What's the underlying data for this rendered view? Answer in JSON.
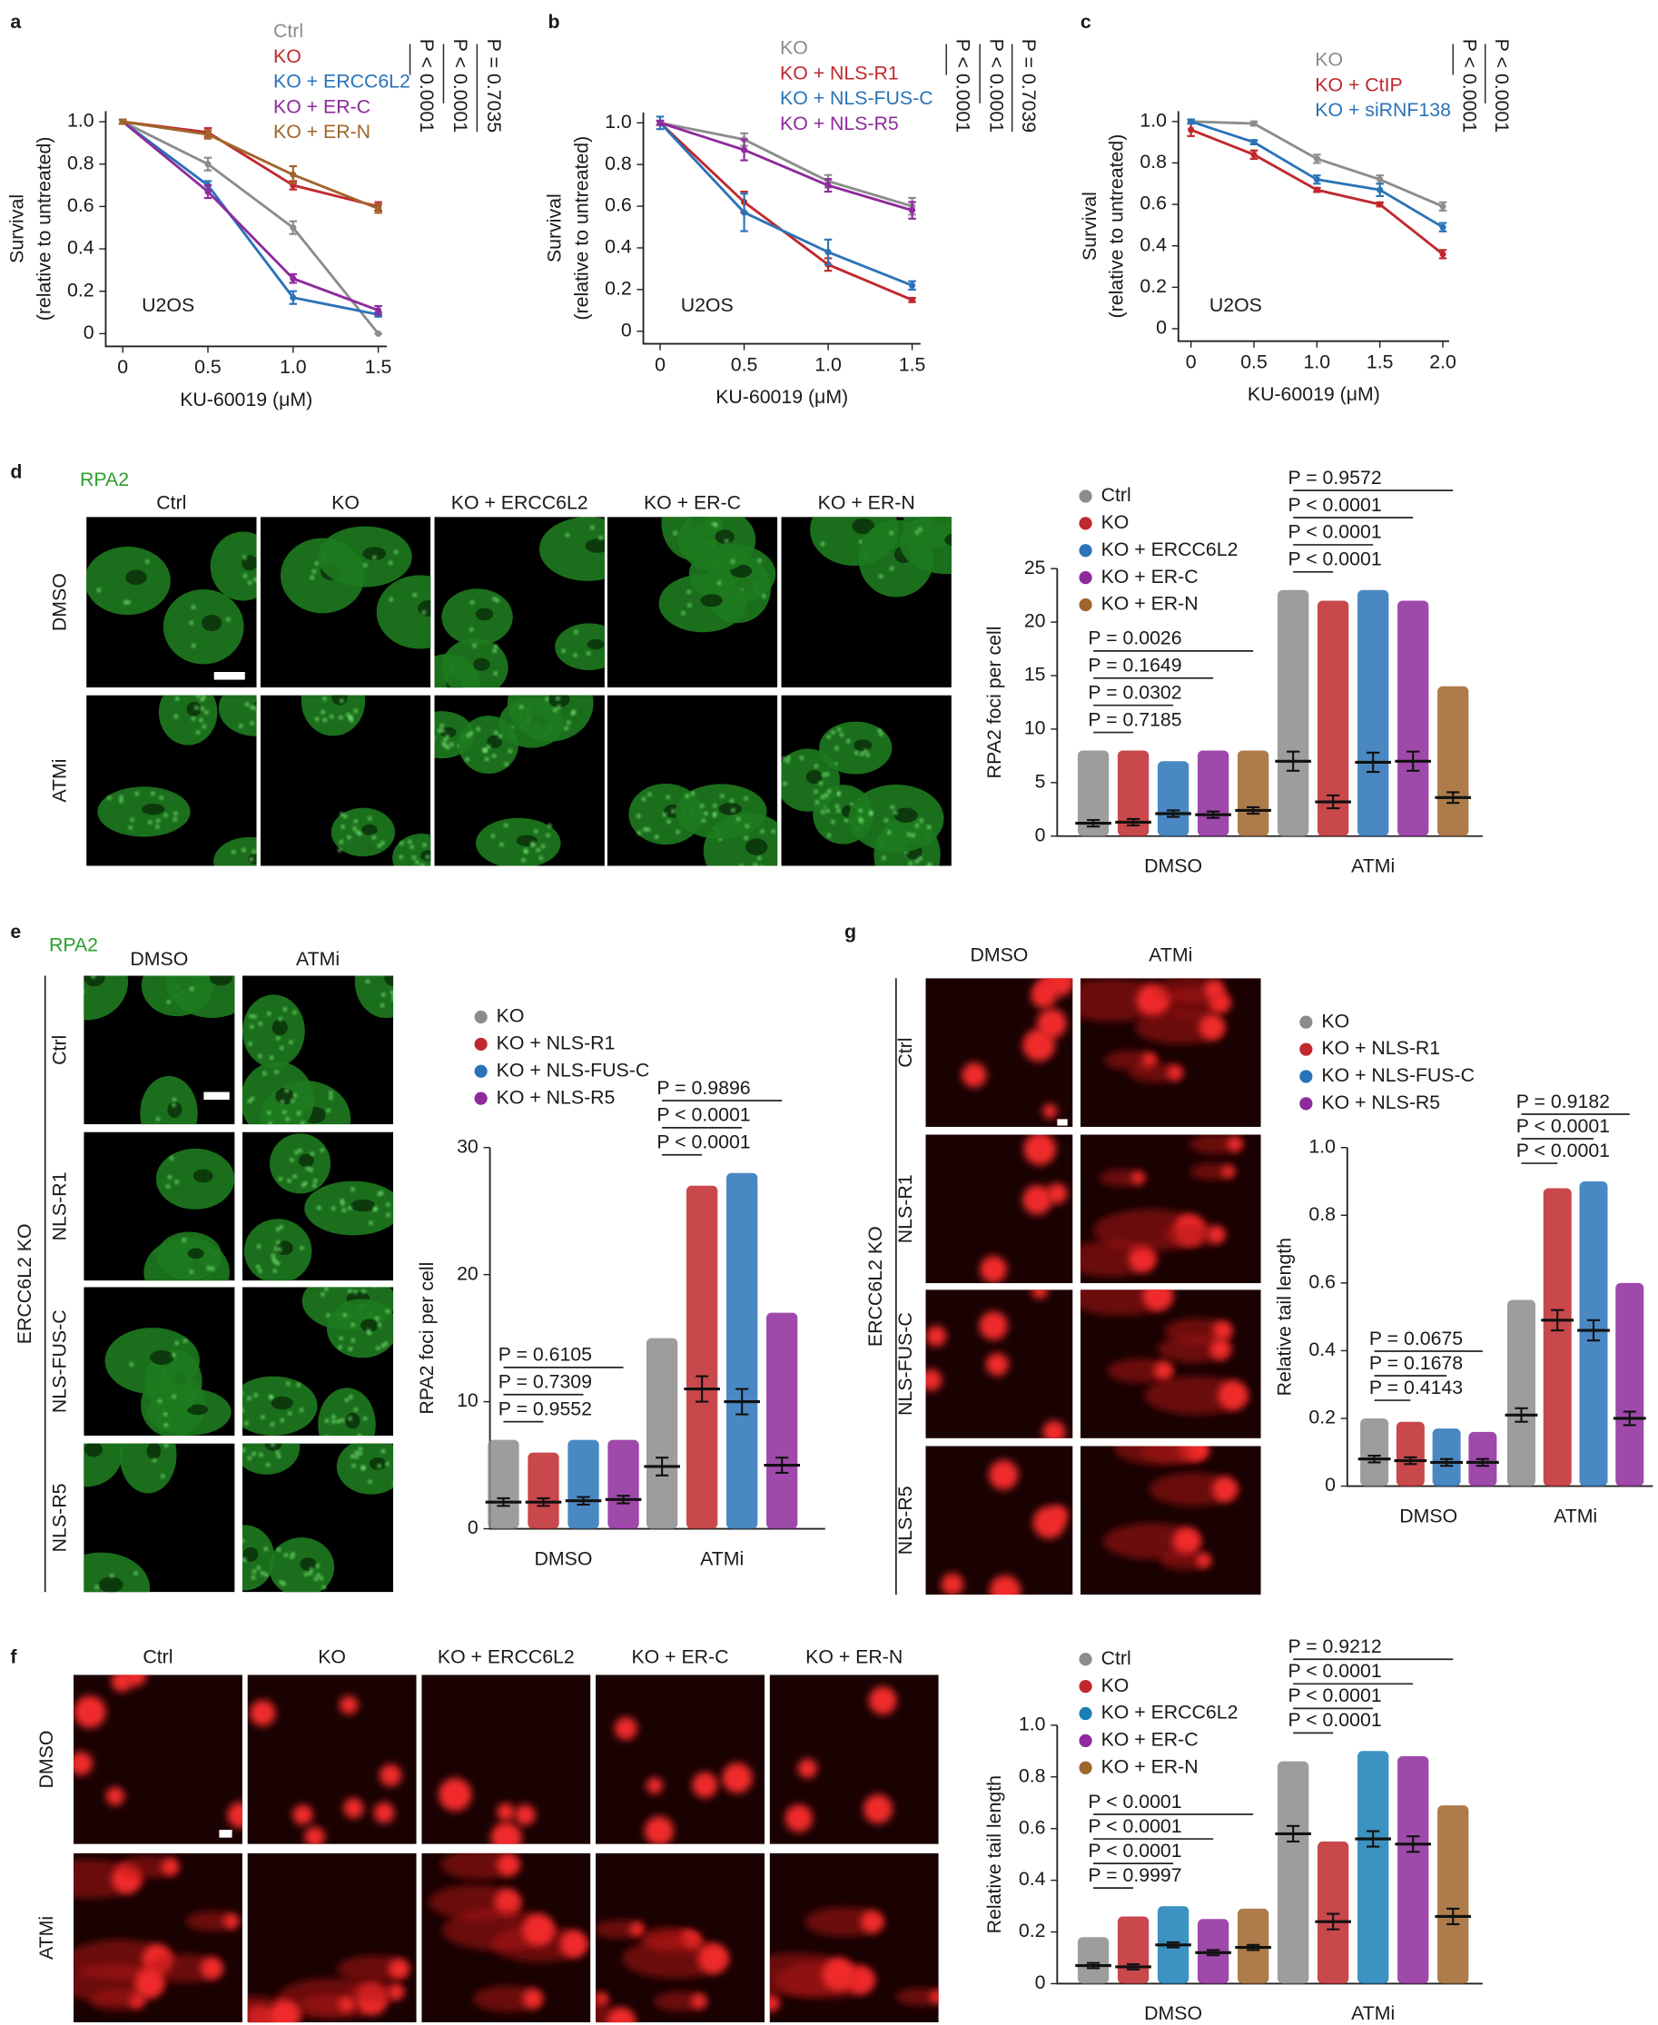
{
  "panel_letters": [
    "a",
    "b",
    "c",
    "d",
    "e",
    "f",
    "g"
  ],
  "image_panels": [
    {
      "stain": "RPA2",
      "columns": [
        "Ctrl",
        "KO",
        "KO + ERCC6L2",
        "KO + ER-C",
        "KO + ER-N"
      ],
      "rows": [
        "DMSO",
        "ATMi"
      ]
    },
    {
      "stain": "RPA2",
      "columns": [
        "DMSO",
        "ATMi"
      ],
      "rows": [
        "Ctrl",
        "NLS-R1",
        "NLS-FUS-C",
        "NLS-R5"
      ],
      "side": "ERCC6L2 KO"
    },
    {
      "columns": [
        "Ctrl",
        "KO",
        "KO + ERCC6L2",
        "KO + ER-C",
        "KO + ER-N"
      ],
      "rows": [
        "DMSO",
        "ATMi"
      ]
    },
    {
      "columns": [
        "DMSO",
        "ATMi"
      ],
      "rows": [
        "Ctrl",
        "NLS-R1",
        "NLS-FUS-C",
        "NLS-R5"
      ],
      "side": "ERCC6L2 KO"
    }
  ],
  "chart_data": [
    {
      "type": "line",
      "ylabel": [
        "Survival",
        "(relative to untreated)"
      ],
      "xlabel": "KU-60019 (μM)",
      "cell_line": "U2OS",
      "x": [
        0,
        0.5,
        1,
        1.5
      ],
      "xlim": [
        -0.1,
        1.55
      ],
      "ylim": [
        -0.06,
        1.05
      ],
      "xticks": [
        0,
        0.5,
        {
          "value": 1,
          "label": "1.0"
        },
        1.5
      ],
      "yticks": [
        0,
        0.2,
        0.4,
        0.6,
        0.8,
        {
          "value": 1,
          "label": "1.0"
        }
      ],
      "annotations": [
        "P < 0.0001",
        "P < 0.0001",
        "P = 0.7035"
      ],
      "series": [
        {
          "name": "Ctrl",
          "color": "#8c8c8c",
          "values": [
            1.0,
            0.8,
            0.5,
            0.0
          ],
          "errors": [
            0.01,
            0.03,
            0.03,
            0.0
          ]
        },
        {
          "name": "KO",
          "color": "#c0282d",
          "values": [
            1.0,
            0.95,
            0.7,
            0.6
          ],
          "errors": [
            0.01,
            0.02,
            0.02,
            0.02
          ]
        },
        {
          "name": "KO + ERCC6L2",
          "color": "#2a73b8",
          "values": [
            1.0,
            0.7,
            0.17,
            0.09
          ],
          "errors": [
            0.01,
            0.02,
            0.03,
            0.01
          ]
        },
        {
          "name": "KO + ER-C",
          "color": "#8e2a9c",
          "values": [
            1.0,
            0.67,
            0.26,
            0.11
          ],
          "errors": [
            0.01,
            0.03,
            0.02,
            0.02
          ]
        },
        {
          "name": "KO + ER-N",
          "color": "#a0652a",
          "values": [
            1.0,
            0.94,
            0.75,
            0.59
          ],
          "errors": [
            0.01,
            0.02,
            0.04,
            0.02
          ]
        }
      ]
    },
    {
      "type": "line",
      "ylabel": [
        "Survival",
        "(relative to untreated)"
      ],
      "xlabel": "KU-60019 (μM)",
      "cell_line": "U2OS",
      "x": [
        0,
        0.5,
        1,
        1.5
      ],
      "xlim": [
        -0.1,
        1.55
      ],
      "ylim": [
        -0.06,
        1.05
      ],
      "xticks": [
        0,
        0.5,
        {
          "value": 1,
          "label": "1.0"
        },
        1.5
      ],
      "yticks": [
        0,
        0.2,
        0.4,
        0.6,
        0.8,
        {
          "value": 1,
          "label": "1.0"
        }
      ],
      "annotations": [
        "P < 0.0001",
        "P < 0.0001",
        "P = 0.7039"
      ],
      "series": [
        {
          "name": "KO",
          "color": "#8c8c8c",
          "values": [
            1.0,
            0.92,
            0.72,
            0.6
          ],
          "errors": [
            0.01,
            0.03,
            0.03,
            0.04
          ]
        },
        {
          "name": "KO + NLS-R1",
          "color": "#c0282d",
          "values": [
            1.0,
            0.62,
            0.32,
            0.15
          ],
          "errors": [
            0.01,
            0.05,
            0.03,
            0.01
          ]
        },
        {
          "name": "KO + NLS-FUS-C",
          "color": "#2a73b8",
          "values": [
            1.0,
            0.57,
            0.38,
            0.22
          ],
          "errors": [
            0.03,
            0.09,
            0.06,
            0.02
          ]
        },
        {
          "name": "KO + NLS-R5",
          "color": "#8e2a9c",
          "values": [
            1.0,
            0.87,
            0.7,
            0.58
          ],
          "errors": [
            0.01,
            0.05,
            0.03,
            0.04
          ]
        }
      ]
    },
    {
      "type": "line",
      "ylabel": [
        "Survival",
        "(relative to untreated)"
      ],
      "xlabel": "KU-60019 (μM)",
      "cell_line": "U2OS",
      "x": [
        0,
        0.5,
        1,
        1.5,
        2
      ],
      "xlim": [
        -0.1,
        2.05
      ],
      "ylim": [
        -0.06,
        1.05
      ],
      "xticks": [
        0,
        0.5,
        {
          "value": 1,
          "label": "1.0"
        },
        1.5,
        {
          "value": 2,
          "label": "2.0"
        }
      ],
      "yticks": [
        0,
        0.2,
        0.4,
        0.6,
        0.8,
        {
          "value": 1,
          "label": "1.0"
        }
      ],
      "annotations": [
        "P < 0.0001",
        "P < 0.0001"
      ],
      "series": [
        {
          "name": "KO",
          "color": "#8c8c8c",
          "values": [
            1.0,
            0.99,
            0.82,
            0.72,
            0.59
          ],
          "errors": [
            0.01,
            0.01,
            0.02,
            0.02,
            0.02
          ]
        },
        {
          "name": "KO + CtIP",
          "color": "#c0282d",
          "values": [
            0.96,
            0.84,
            0.67,
            0.6,
            0.36
          ],
          "errors": [
            0.03,
            0.02,
            0.01,
            0.01,
            0.02
          ]
        },
        {
          "name": "KO + siRNF138",
          "color": "#2a73b8",
          "values": [
            1.0,
            0.9,
            0.72,
            0.67,
            0.49
          ],
          "errors": [
            0.01,
            0.01,
            0.02,
            0.03,
            0.02
          ]
        }
      ]
    },
    {
      "type": "dotplot",
      "ylabel": "RPA2 foci per cell",
      "categories": [
        "DMSO",
        "ATMi"
      ],
      "ylim": [
        0,
        25
      ],
      "yticks": [
        0,
        5,
        10,
        15,
        20,
        25
      ],
      "comparisons": [
        [
          "P = 0.7185",
          "P = 0.0302",
          "P = 0.1649",
          "P = 0.0026"
        ],
        [
          "P < 0.0001",
          "P < 0.0001",
          "P < 0.0001",
          "P = 0.9572"
        ]
      ],
      "series": [
        {
          "name": "Ctrl",
          "color": "#8c8c8c",
          "values": [
            1.2,
            7.0
          ],
          "sem": [
            0.3,
            0.9
          ],
          "max": [
            8,
            23
          ]
        },
        {
          "name": "KO",
          "color": "#c0282d",
          "values": [
            1.3,
            3.2
          ],
          "sem": [
            0.3,
            0.6
          ],
          "max": [
            8,
            22
          ]
        },
        {
          "name": "KO + ERCC6L2",
          "color": "#2a73b8",
          "values": [
            2.1,
            6.9
          ],
          "sem": [
            0.3,
            0.9
          ],
          "max": [
            7,
            23
          ]
        },
        {
          "name": "KO + ER-C",
          "color": "#8e2a9c",
          "values": [
            2.0,
            7.0
          ],
          "sem": [
            0.3,
            0.9
          ],
          "max": [
            8,
            22
          ]
        },
        {
          "name": "KO + ER-N",
          "color": "#a0652a",
          "values": [
            2.4,
            3.6
          ],
          "sem": [
            0.3,
            0.5
          ],
          "max": [
            8,
            14
          ]
        }
      ]
    },
    {
      "type": "dotplot",
      "ylabel": "RPA2 foci per cell",
      "categories": [
        "DMSO",
        "ATMi"
      ],
      "ylim": [
        0,
        30
      ],
      "yticks": [
        0,
        10,
        20,
        30
      ],
      "comparisons": [
        [
          "P = 0.9552",
          "P = 0.7309",
          "P = 0.6105"
        ],
        [
          "P < 0.0001",
          "P < 0.0001",
          "P = 0.9896"
        ]
      ],
      "series": [
        {
          "name": "KO",
          "color": "#8c8c8c",
          "values": [
            2.1,
            4.9
          ],
          "sem": [
            0.3,
            0.7
          ],
          "max": [
            7,
            15
          ]
        },
        {
          "name": "KO + NLS-R1",
          "color": "#c0282d",
          "values": [
            2.1,
            11.0
          ],
          "sem": [
            0.3,
            1.0
          ],
          "max": [
            6,
            27
          ]
        },
        {
          "name": "KO + NLS-FUS-C",
          "color": "#2a73b8",
          "values": [
            2.2,
            10.0
          ],
          "sem": [
            0.3,
            1.0
          ],
          "max": [
            7,
            28
          ]
        },
        {
          "name": "KO + NLS-R5",
          "color": "#8e2a9c",
          "values": [
            2.3,
            5.0
          ],
          "sem": [
            0.3,
            0.6
          ],
          "max": [
            7,
            17
          ]
        }
      ]
    },
    {
      "type": "dotplot",
      "ylabel": "Relative tail length",
      "categories": [
        "DMSO",
        "ATMi"
      ],
      "ylim": [
        0,
        1
      ],
      "yticks": [
        0,
        0.2,
        0.4,
        0.6,
        0.8,
        {
          "value": 1,
          "label": "1.0"
        }
      ],
      "comparisons": [
        [
          "P = 0.9997",
          "P < 0.0001",
          "P < 0.0001",
          "P < 0.0001"
        ],
        [
          "P < 0.0001",
          "P < 0.0001",
          "P < 0.0001",
          "P = 0.9212"
        ]
      ],
      "series": [
        {
          "name": "Ctrl",
          "color": "#8c8c8c",
          "values": [
            0.07,
            0.58
          ],
          "sem": [
            0.01,
            0.03
          ],
          "max": [
            0.18,
            0.86
          ]
        },
        {
          "name": "KO",
          "color": "#c0282d",
          "values": [
            0.065,
            0.24
          ],
          "sem": [
            0.01,
            0.03
          ],
          "max": [
            0.26,
            0.55
          ]
        },
        {
          "name": "KO + ERCC6L2",
          "color": "#1a7fb5",
          "values": [
            0.15,
            0.56
          ],
          "sem": [
            0.01,
            0.03
          ],
          "max": [
            0.3,
            0.9
          ]
        },
        {
          "name": "KO + ER-C",
          "color": "#8e2a9c",
          "values": [
            0.12,
            0.54
          ],
          "sem": [
            0.01,
            0.03
          ],
          "max": [
            0.25,
            0.88
          ]
        },
        {
          "name": "KO + ER-N",
          "color": "#a0652a",
          "values": [
            0.14,
            0.26
          ],
          "sem": [
            0.01,
            0.03
          ],
          "max": [
            0.29,
            0.69
          ]
        }
      ]
    },
    {
      "type": "dotplot",
      "ylabel": "Relative tail length",
      "categories": [
        "DMSO",
        "ATMi"
      ],
      "ylim": [
        0,
        1
      ],
      "yticks": [
        0,
        0.2,
        0.4,
        0.6,
        0.8,
        {
          "value": 1,
          "label": "1.0"
        }
      ],
      "comparisons": [
        [
          "P = 0.4143",
          "P = 0.1678",
          "P = 0.0675"
        ],
        [
          "P < 0.0001",
          "P < 0.0001",
          "P = 0.9182"
        ]
      ],
      "series": [
        {
          "name": "KO",
          "color": "#8c8c8c",
          "values": [
            0.08,
            0.21
          ],
          "sem": [
            0.01,
            0.02
          ],
          "max": [
            0.2,
            0.55
          ]
        },
        {
          "name": "KO + NLS-R1",
          "color": "#c0282d",
          "values": [
            0.075,
            0.49
          ],
          "sem": [
            0.01,
            0.03
          ],
          "max": [
            0.19,
            0.88
          ]
        },
        {
          "name": "KO + NLS-FUS-C",
          "color": "#2a73b8",
          "values": [
            0.07,
            0.46
          ],
          "sem": [
            0.01,
            0.03
          ],
          "max": [
            0.17,
            0.9
          ]
        },
        {
          "name": "KO + NLS-R5",
          "color": "#8e2a9c",
          "values": [
            0.07,
            0.2
          ],
          "sem": [
            0.01,
            0.02
          ],
          "max": [
            0.16,
            0.6
          ]
        }
      ]
    }
  ]
}
